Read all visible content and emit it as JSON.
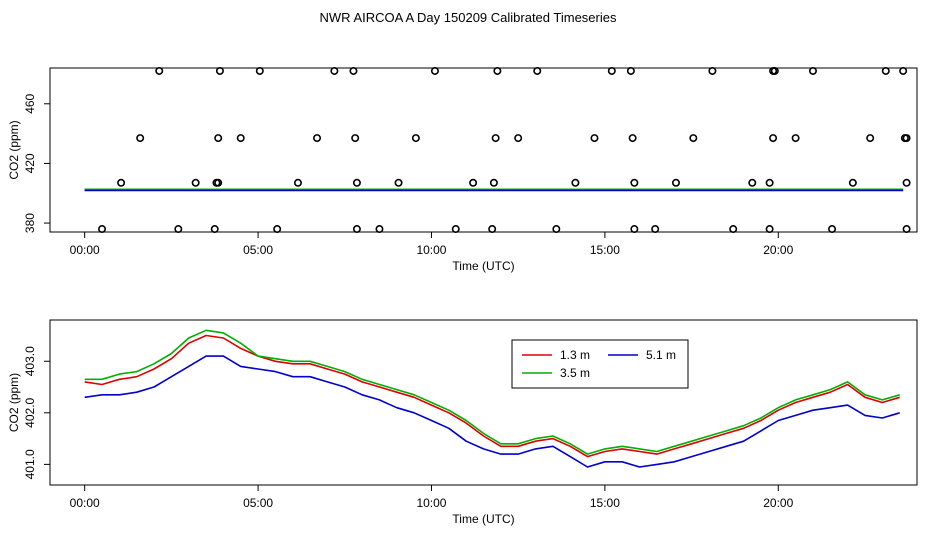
{
  "title": "NWR AIRCOA A  Day 150209  Calibrated Timeseries",
  "chart_data": [
    {
      "type": "scatter+line",
      "xlabel": "Time (UTC)",
      "ylabel": "CO2 (ppm)",
      "xlim": [
        -1.0,
        24.0
      ],
      "ylim": [
        374,
        484
      ],
      "xticks": [
        0,
        5,
        10,
        15,
        20
      ],
      "xtick_labels": [
        "00:00",
        "05:00",
        "10:00",
        "15:00",
        "20:00"
      ],
      "yticks": [
        380,
        420,
        460
      ],
      "ytick_labels": [
        "380",
        "420",
        "460"
      ],
      "series": [
        {
          "name": "1.3 m",
          "color": "#e00000",
          "line": {
            "x": [
              0,
              23.6
            ],
            "y": [
              402.2,
              402.2
            ]
          }
        },
        {
          "name": "3.5 m",
          "color": "#00b000",
          "line": {
            "x": [
              0,
              23.6
            ],
            "y": [
              402.6,
              402.6
            ]
          }
        },
        {
          "name": "5.1 m",
          "color": "#0000cc",
          "line": {
            "x": [
              0,
              23.6
            ],
            "y": [
              401.9,
              401.9
            ]
          }
        }
      ],
      "points": {
        "marker": "open-circle",
        "color": "#000000",
        "x": [
          0.5,
          2.7,
          3.75,
          5.55,
          7.85,
          8.5,
          10.7,
          11.75,
          13.6,
          15.85,
          16.45,
          18.7,
          19.75,
          21.55,
          23.7,
          1.05,
          3.2,
          3.8,
          3.85,
          6.15,
          7.85,
          9.05,
          11.2,
          11.8,
          14.15,
          15.85,
          17.05,
          19.25,
          19.75,
          22.15,
          23.7,
          1.6,
          3.85,
          4.5,
          6.7,
          7.8,
          9.55,
          11.85,
          12.5,
          14.7,
          15.8,
          17.55,
          19.85,
          20.5,
          22.65,
          23.65,
          23.7,
          2.15,
          3.9,
          5.05,
          7.2,
          7.75,
          10.1,
          11.9,
          13.05,
          15.2,
          15.75,
          18.1,
          19.85,
          19.9,
          21.0,
          23.1,
          23.6
        ],
        "y": [
          376,
          376,
          376,
          376,
          376,
          376,
          376,
          376,
          376,
          376,
          376,
          376,
          376,
          376,
          376,
          407,
          407,
          407,
          407,
          407,
          407,
          407,
          407,
          407,
          407,
          407,
          407,
          407,
          407,
          407,
          407,
          437,
          437,
          437,
          437,
          437,
          437,
          437,
          437,
          437,
          437,
          437,
          437,
          437,
          437,
          437,
          437,
          482,
          482,
          482,
          482,
          482,
          482,
          482,
          482,
          482,
          482,
          482,
          482,
          482,
          482,
          482,
          482
        ]
      }
    },
    {
      "type": "line",
      "xlabel": "Time (UTC)",
      "ylabel": "CO2 (ppm)",
      "xlim": [
        -1.0,
        24.0
      ],
      "ylim": [
        400.6,
        403.8
      ],
      "xticks": [
        0,
        5,
        10,
        15,
        20
      ],
      "xtick_labels": [
        "00:00",
        "05:00",
        "10:00",
        "15:00",
        "20:00"
      ],
      "yticks": [
        401.0,
        402.0,
        403.0
      ],
      "ytick_labels": [
        "401.0",
        "402.0",
        "403.0"
      ],
      "legend": {
        "position": "top-center-right",
        "entries": [
          "1.3 m",
          "3.5 m",
          "5.1 m"
        ]
      },
      "x": [
        0,
        0.5,
        1,
        1.5,
        2,
        2.5,
        3,
        3.5,
        4,
        4.5,
        5,
        5.5,
        6,
        6.5,
        7,
        7.5,
        8,
        8.5,
        9,
        9.5,
        10,
        10.5,
        11,
        11.5,
        12,
        12.5,
        13,
        13.5,
        14,
        14.5,
        15,
        15.5,
        16,
        16.5,
        17,
        17.5,
        18,
        18.5,
        19,
        19.5,
        20,
        20.5,
        21,
        21.5,
        22,
        22.5,
        23,
        23.5
      ],
      "series": [
        {
          "name": "1.3 m",
          "color": "#e00000",
          "values": [
            402.6,
            402.55,
            402.65,
            402.7,
            402.85,
            403.05,
            403.35,
            403.5,
            403.45,
            403.25,
            403.1,
            403.0,
            402.95,
            402.95,
            402.85,
            402.75,
            402.6,
            402.5,
            402.4,
            402.3,
            402.15,
            402.0,
            401.8,
            401.55,
            401.35,
            401.35,
            401.45,
            401.5,
            401.35,
            401.15,
            401.25,
            401.3,
            401.25,
            401.2,
            401.3,
            401.4,
            401.5,
            401.6,
            401.7,
            401.85,
            402.05,
            402.2,
            402.3,
            402.4,
            402.55,
            402.3,
            402.2,
            402.3
          ]
        },
        {
          "name": "3.5 m",
          "color": "#00b000",
          "values": [
            402.65,
            402.65,
            402.75,
            402.8,
            402.95,
            403.15,
            403.45,
            403.6,
            403.55,
            403.35,
            403.1,
            403.05,
            403.0,
            403.0,
            402.9,
            402.8,
            402.65,
            402.55,
            402.45,
            402.35,
            402.2,
            402.05,
            401.85,
            401.6,
            401.4,
            401.4,
            401.5,
            401.55,
            401.4,
            401.2,
            401.3,
            401.35,
            401.3,
            401.25,
            401.35,
            401.45,
            401.55,
            401.65,
            401.75,
            401.9,
            402.1,
            402.25,
            402.35,
            402.45,
            402.6,
            402.35,
            402.25,
            402.35
          ]
        },
        {
          "name": "5.1 m",
          "color": "#0000cc",
          "values": [
            402.3,
            402.35,
            402.35,
            402.4,
            402.5,
            402.7,
            402.9,
            403.1,
            403.1,
            402.9,
            402.85,
            402.8,
            402.7,
            402.7,
            402.6,
            402.5,
            402.35,
            402.25,
            402.1,
            402.0,
            401.85,
            401.7,
            401.45,
            401.3,
            401.2,
            401.2,
            401.3,
            401.35,
            401.15,
            400.95,
            401.05,
            401.05,
            400.95,
            401.0,
            401.05,
            401.15,
            401.25,
            401.35,
            401.45,
            401.65,
            401.85,
            401.95,
            402.05,
            402.1,
            402.15,
            401.95,
            401.9,
            402.0
          ]
        }
      ]
    }
  ]
}
